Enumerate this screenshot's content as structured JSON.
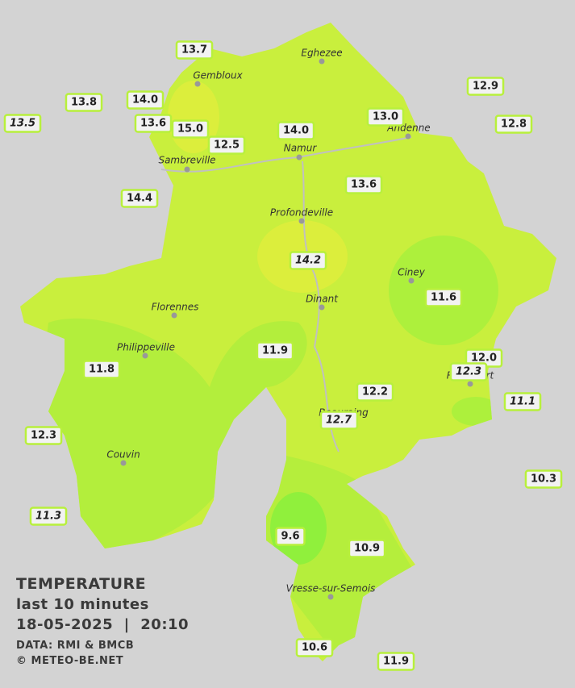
{
  "towns": [
    {
      "name": "Eghezee"
    },
    {
      "name": "Gembloux"
    },
    {
      "name": "Andenne"
    },
    {
      "name": "Namur"
    },
    {
      "name": "Sambreville"
    },
    {
      "name": "Profondeville"
    },
    {
      "name": "Ciney"
    },
    {
      "name": "Florennes"
    },
    {
      "name": "Dinant"
    },
    {
      "name": "Philippeville"
    },
    {
      "name": "Rochefort"
    },
    {
      "name": "Beauraing"
    },
    {
      "name": "Couvin"
    },
    {
      "name": "Vresse-sur-Semois"
    }
  ],
  "stations": [
    {
      "value": "13.7",
      "italic": false
    },
    {
      "value": "13.8",
      "italic": false
    },
    {
      "value": "14.0",
      "italic": false
    },
    {
      "value": "13.6",
      "italic": false
    },
    {
      "value": "15.0",
      "italic": false
    },
    {
      "value": "12.5",
      "italic": false
    },
    {
      "value": "14.0",
      "italic": false
    },
    {
      "value": "13.0",
      "italic": false
    },
    {
      "value": "12.9",
      "italic": false
    },
    {
      "value": "12.8",
      "italic": false
    },
    {
      "value": "13.5",
      "italic": true
    },
    {
      "value": "14.4",
      "italic": false
    },
    {
      "value": "13.6",
      "italic": false
    },
    {
      "value": "14.2",
      "italic": true
    },
    {
      "value": "11.6",
      "italic": false
    },
    {
      "value": "11.9",
      "italic": false
    },
    {
      "value": "11.8",
      "italic": false
    },
    {
      "value": "12.0",
      "italic": false
    },
    {
      "value": "12.3",
      "italic": true
    },
    {
      "value": "12.2",
      "italic": false
    },
    {
      "value": "12.7",
      "italic": true
    },
    {
      "value": "11.1",
      "italic": true
    },
    {
      "value": "12.3",
      "italic": false
    },
    {
      "value": "10.3",
      "italic": false
    },
    {
      "value": "11.3",
      "italic": true
    },
    {
      "value": "9.6",
      "italic": false
    },
    {
      "value": "10.9",
      "italic": false
    },
    {
      "value": "10.6",
      "italic": false
    },
    {
      "value": "11.9",
      "italic": false
    }
  ],
  "caption": {
    "title": "TEMPERATURE",
    "subtitle": "last 10 minutes",
    "datetime": "18-05-2025  |  20:10",
    "source": "DATA: RMI & BMCB",
    "copyright": "© METEO-BE.NET"
  }
}
